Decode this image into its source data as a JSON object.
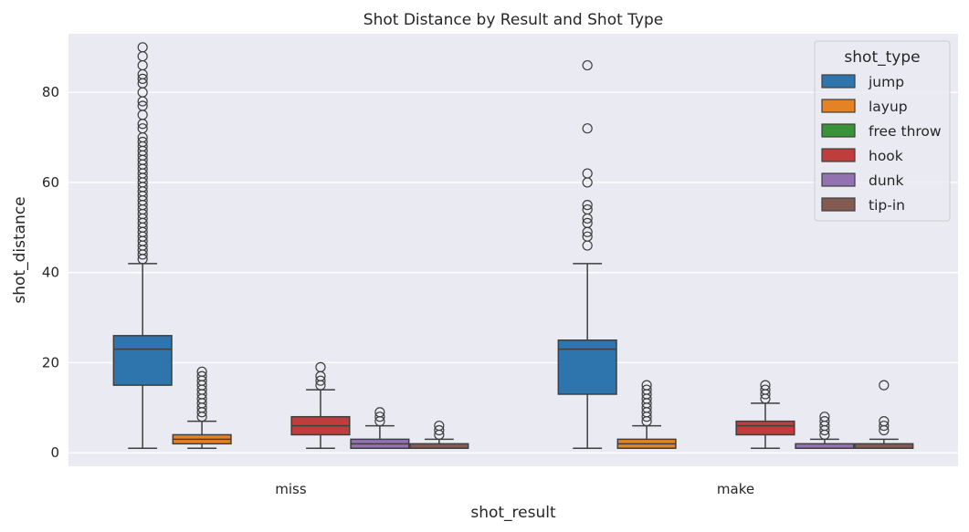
{
  "chart_data": {
    "type": "box",
    "title": "Shot Distance by Result and Shot Type",
    "xlabel": "shot_result",
    "ylabel": "shot_distance",
    "categories": [
      "miss",
      "make"
    ],
    "ylim": [
      -3,
      93
    ],
    "yticks": [
      0,
      20,
      40,
      60,
      80
    ],
    "grid": true,
    "legend": {
      "title": "shot_type",
      "position": "top-right"
    },
    "series": [
      {
        "name": "jump",
        "color": "#2e75ad",
        "boxes": [
          {
            "category": "miss",
            "whisker_low": 1,
            "q1": 15,
            "median": 23,
            "q3": 26,
            "whisker_high": 42,
            "outliers": [
              43,
              44,
              45,
              46,
              47,
              48,
              49,
              50,
              51,
              52,
              53,
              54,
              55,
              56,
              57,
              58,
              59,
              60,
              61,
              62,
              63,
              64,
              65,
              66,
              67,
              68,
              69,
              70,
              72,
              73,
              75,
              77,
              78,
              80,
              82,
              83,
              84,
              86,
              88,
              90
            ]
          },
          {
            "category": "make",
            "whisker_low": 1,
            "q1": 13,
            "median": 23,
            "q3": 25,
            "whisker_high": 42,
            "outliers": [
              46,
              48,
              49,
              51,
              52,
              54,
              55,
              60,
              62,
              72,
              86
            ]
          }
        ]
      },
      {
        "name": "layup",
        "color": "#e58324",
        "boxes": [
          {
            "category": "miss",
            "whisker_low": 1,
            "q1": 2,
            "median": 3,
            "q3": 4,
            "whisker_high": 7,
            "outliers": [
              8,
              9,
              10,
              11,
              12,
              13,
              14,
              15,
              16,
              17,
              18
            ]
          },
          {
            "category": "make",
            "whisker_low": 1,
            "q1": 1,
            "median": 2,
            "q3": 3,
            "whisker_high": 6,
            "outliers": [
              7,
              8,
              9,
              10,
              11,
              12,
              13,
              14,
              15
            ]
          }
        ]
      },
      {
        "name": "free throw",
        "color": "#3a923a",
        "boxes": []
      },
      {
        "name": "hook",
        "color": "#c03d3e",
        "boxes": [
          {
            "category": "miss",
            "whisker_low": 1,
            "q1": 4,
            "median": 6,
            "q3": 8,
            "whisker_high": 14,
            "outliers": [
              15,
              16,
              17,
              19
            ]
          },
          {
            "category": "make",
            "whisker_low": 1,
            "q1": 4,
            "median": 6,
            "q3": 7,
            "whisker_high": 11,
            "outliers": [
              12,
              13,
              14,
              15
            ]
          }
        ]
      },
      {
        "name": "dunk",
        "color": "#9372b2",
        "boxes": [
          {
            "category": "miss",
            "whisker_low": 1,
            "q1": 1,
            "median": 2,
            "q3": 3,
            "whisker_high": 6,
            "outliers": [
              7,
              8,
              9
            ]
          },
          {
            "category": "make",
            "whisker_low": 1,
            "q1": 1,
            "median": 1,
            "q3": 2,
            "whisker_high": 3,
            "outliers": [
              4,
              5,
              6,
              7,
              8
            ]
          }
        ]
      },
      {
        "name": "tip-in",
        "color": "#845b53",
        "boxes": [
          {
            "category": "miss",
            "whisker_low": 1,
            "q1": 1,
            "median": 1,
            "q3": 2,
            "whisker_high": 3,
            "outliers": [
              4,
              5,
              6
            ]
          },
          {
            "category": "make",
            "whisker_low": 1,
            "q1": 1,
            "median": 1,
            "q3": 2,
            "whisker_high": 3,
            "outliers": [
              5,
              6,
              7,
              15
            ]
          }
        ]
      }
    ]
  }
}
